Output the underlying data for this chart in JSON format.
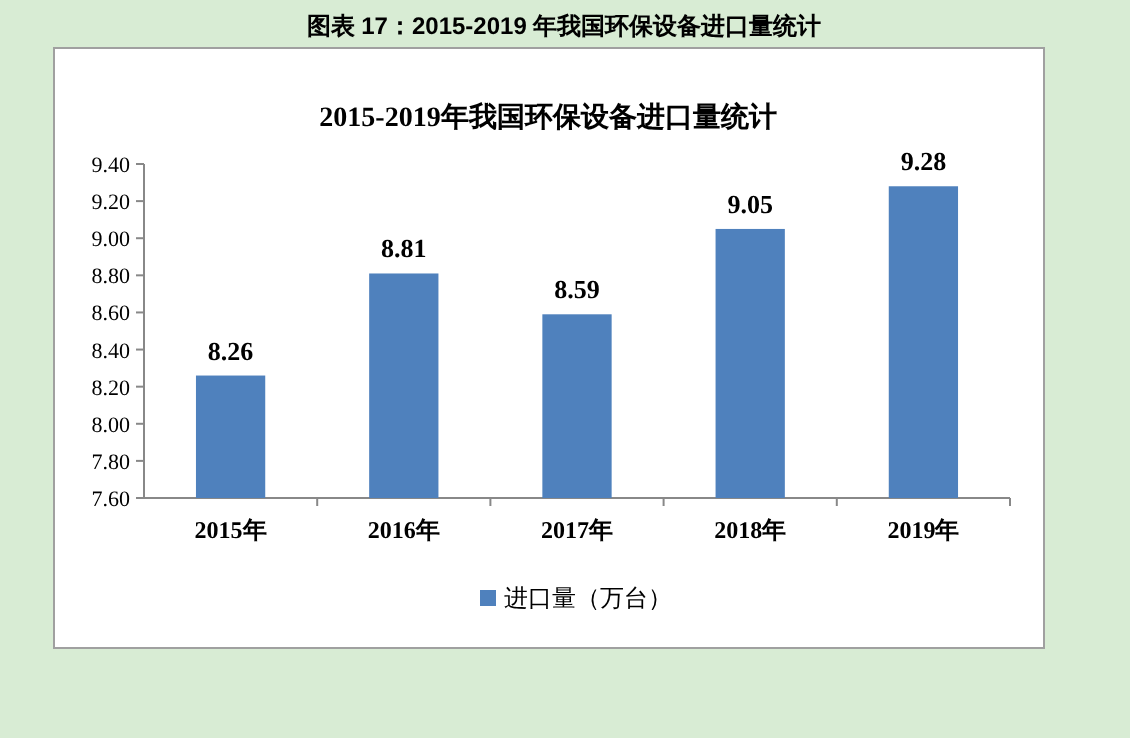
{
  "chart_data": {
    "type": "bar",
    "title": "2015-2019年我国环保设备进口量统计",
    "annotations": [
      "图表 17：2015-2019 年我国环保设备进口量统计"
    ],
    "categories": [
      "2015年",
      "2016年",
      "2017年",
      "2018年",
      "2019年"
    ],
    "series": [
      {
        "name": "进口量（万台）",
        "color": "#4f81bd",
        "values": [
          8.26,
          8.81,
          8.59,
          9.05,
          9.28
        ]
      }
    ],
    "ylim": [
      7.6,
      9.4
    ],
    "yticks": [
      {
        "value": 7.6,
        "label": "7.60"
      },
      {
        "value": 7.8,
        "label": "7.80"
      },
      {
        "value": 8.0,
        "label": "8.00"
      },
      {
        "value": 8.2,
        "label": "8.20"
      },
      {
        "value": 8.4,
        "label": "8.40"
      },
      {
        "value": 8.6,
        "label": "8.60"
      },
      {
        "value": 8.8,
        "label": "8.80"
      },
      {
        "value": 9.0,
        "label": "9.00"
      },
      {
        "value": 9.2,
        "label": "9.20"
      },
      {
        "value": 9.4,
        "label": "9.40"
      }
    ],
    "data_labels": true,
    "legend": "bottom"
  }
}
